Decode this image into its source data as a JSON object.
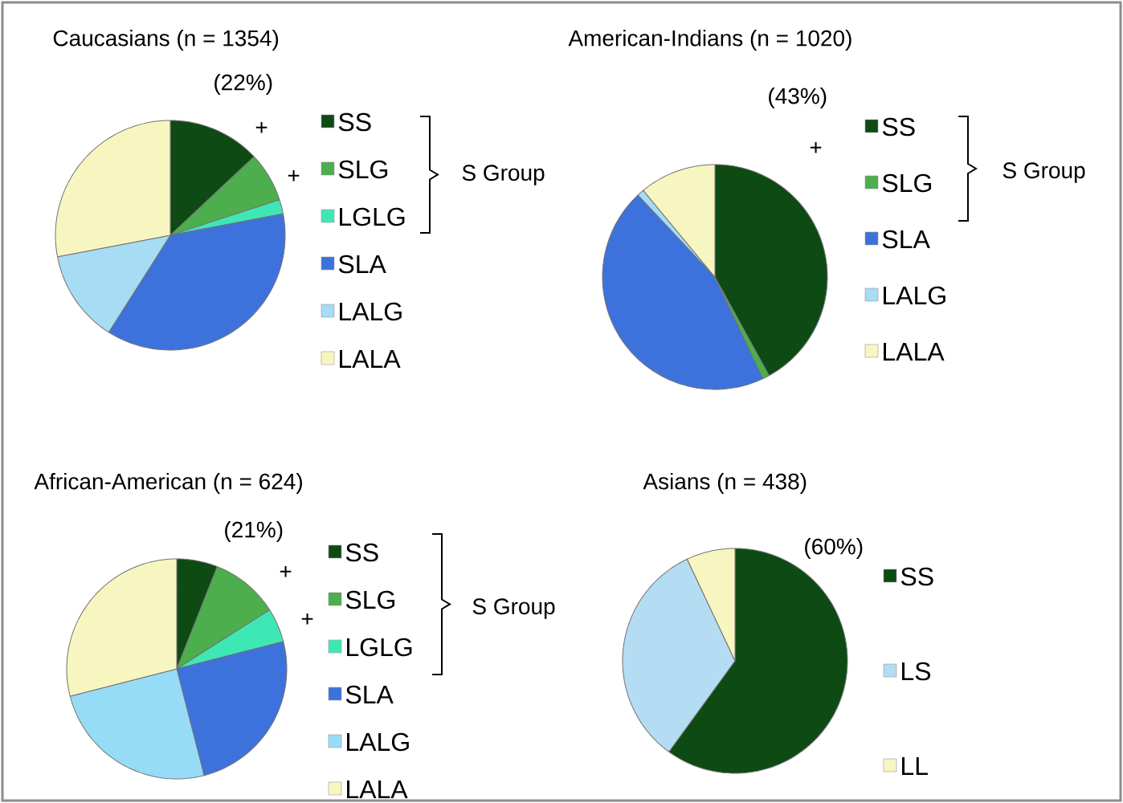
{
  "chart_data": [
    {
      "type": "pie",
      "title": "Caucasians (n = 1354)",
      "categories": [
        "SS",
        "SLG",
        "LGLG",
        "SLA",
        "LALG",
        "LALA"
      ],
      "values": [
        13,
        7,
        2,
        37,
        13,
        28
      ],
      "colors": [
        "#0d4a14",
        "#4cae4c",
        "#3ee8b4",
        "#3d72dc",
        "#a6dcf4",
        "#f8f6c0"
      ],
      "legend": "right",
      "annotations": [
        "(22%)",
        "+",
        "+",
        "S Group"
      ]
    },
    {
      "type": "pie",
      "title": "American-Indians (n = 1020)",
      "categories": [
        "SS",
        "SLG",
        "SLA",
        "LALG",
        "LALA"
      ],
      "values": [
        42,
        1,
        45,
        1,
        11
      ],
      "colors": [
        "#0d4a14",
        "#4cae4c",
        "#3d72dc",
        "#a6dcf4",
        "#f8f6c0"
      ],
      "legend": "right",
      "annotations": [
        "(43%)",
        "+",
        "S Group"
      ]
    },
    {
      "type": "pie",
      "title": "African-American (n = 624)",
      "categories": [
        "SS",
        "SLG",
        "LGLG",
        "SLA",
        "LALG",
        "LALA"
      ],
      "values": [
        6,
        10,
        5,
        25,
        25,
        29
      ],
      "colors": [
        "#0d4a14",
        "#4cae4c",
        "#3ee8b4",
        "#3d72dc",
        "#96dcf6",
        "#f8f6c0"
      ],
      "legend": "right",
      "annotations": [
        "(21%)",
        "+",
        "+",
        "S Group"
      ]
    },
    {
      "type": "pie",
      "title": "Asians (n = 438)",
      "categories": [
        "SS",
        "LS",
        "LL"
      ],
      "values": [
        60,
        33,
        7
      ],
      "colors": [
        "#0d4a14",
        "#b4dcf2",
        "#f8f6c0"
      ],
      "legend": "right",
      "annotations": [
        "(60%)"
      ]
    }
  ]
}
